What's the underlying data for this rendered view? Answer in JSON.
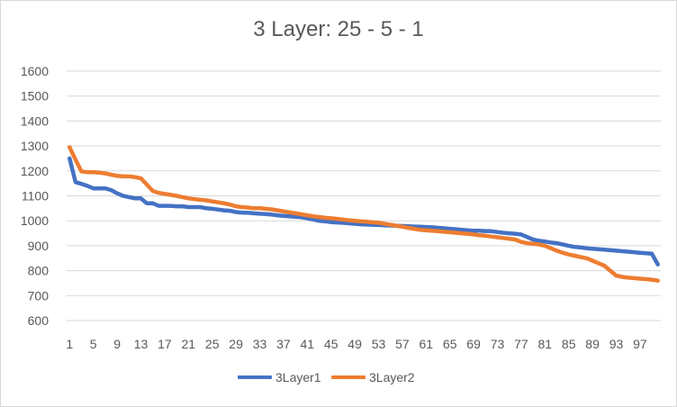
{
  "chart_data": {
    "type": "line",
    "title": "3 Layer: 25 - 5 - 1",
    "xlabel": "",
    "ylabel": "",
    "ylim": [
      600,
      1600
    ],
    "ytick_step": 100,
    "x_tick_labels": [
      "1",
      "5",
      "9",
      "13",
      "17",
      "21",
      "25",
      "29",
      "33",
      "37",
      "41",
      "45",
      "49",
      "53",
      "57",
      "61",
      "65",
      "69",
      "73",
      "77",
      "81",
      "85",
      "89",
      "93",
      "97"
    ],
    "grid": "horizontal",
    "legend_position": "bottom",
    "series": [
      {
        "name": "3Layer1",
        "color": "#4472C4",
        "values": [
          1250,
          1155,
          1148,
          1140,
          1130,
          1130,
          1130,
          1123,
          1110,
          1100,
          1095,
          1090,
          1090,
          1070,
          1070,
          1060,
          1060,
          1060,
          1058,
          1058,
          1055,
          1055,
          1055,
          1050,
          1048,
          1045,
          1042,
          1040,
          1035,
          1033,
          1032,
          1030,
          1028,
          1027,
          1025,
          1022,
          1020,
          1018,
          1016,
          1014,
          1010,
          1005,
          1000,
          998,
          995,
          993,
          992,
          990,
          988,
          986,
          985,
          984,
          983,
          982,
          981,
          980,
          979,
          978,
          977,
          976,
          975,
          974,
          972,
          970,
          968,
          966,
          964,
          962,
          960,
          960,
          959,
          958,
          955,
          952,
          950,
          948,
          945,
          935,
          925,
          920,
          917,
          913,
          910,
          905,
          900,
          895,
          893,
          890,
          888,
          886,
          884,
          882,
          880,
          878,
          876,
          874,
          872,
          870,
          868,
          825
        ]
      },
      {
        "name": "3Layer2",
        "color": "#ED7D31",
        "values": [
          1295,
          1245,
          1198,
          1195,
          1195,
          1193,
          1190,
          1185,
          1180,
          1178,
          1178,
          1175,
          1170,
          1145,
          1120,
          1112,
          1108,
          1104,
          1100,
          1095,
          1090,
          1087,
          1084,
          1082,
          1078,
          1074,
          1070,
          1065,
          1058,
          1055,
          1053,
          1050,
          1050,
          1048,
          1046,
          1042,
          1038,
          1034,
          1030,
          1026,
          1022,
          1018,
          1015,
          1012,
          1010,
          1008,
          1005,
          1002,
          1000,
          998,
          996,
          994,
          992,
          988,
          984,
          980,
          976,
          972,
          968,
          964,
          962,
          960,
          958,
          956,
          954,
          952,
          950,
          948,
          945,
          942,
          940,
          937,
          934,
          931,
          928,
          925,
          915,
          910,
          908,
          905,
          900,
          890,
          880,
          872,
          865,
          860,
          855,
          850,
          840,
          830,
          820,
          800,
          780,
          775,
          772,
          770,
          768,
          766,
          764,
          760
        ]
      }
    ]
  }
}
